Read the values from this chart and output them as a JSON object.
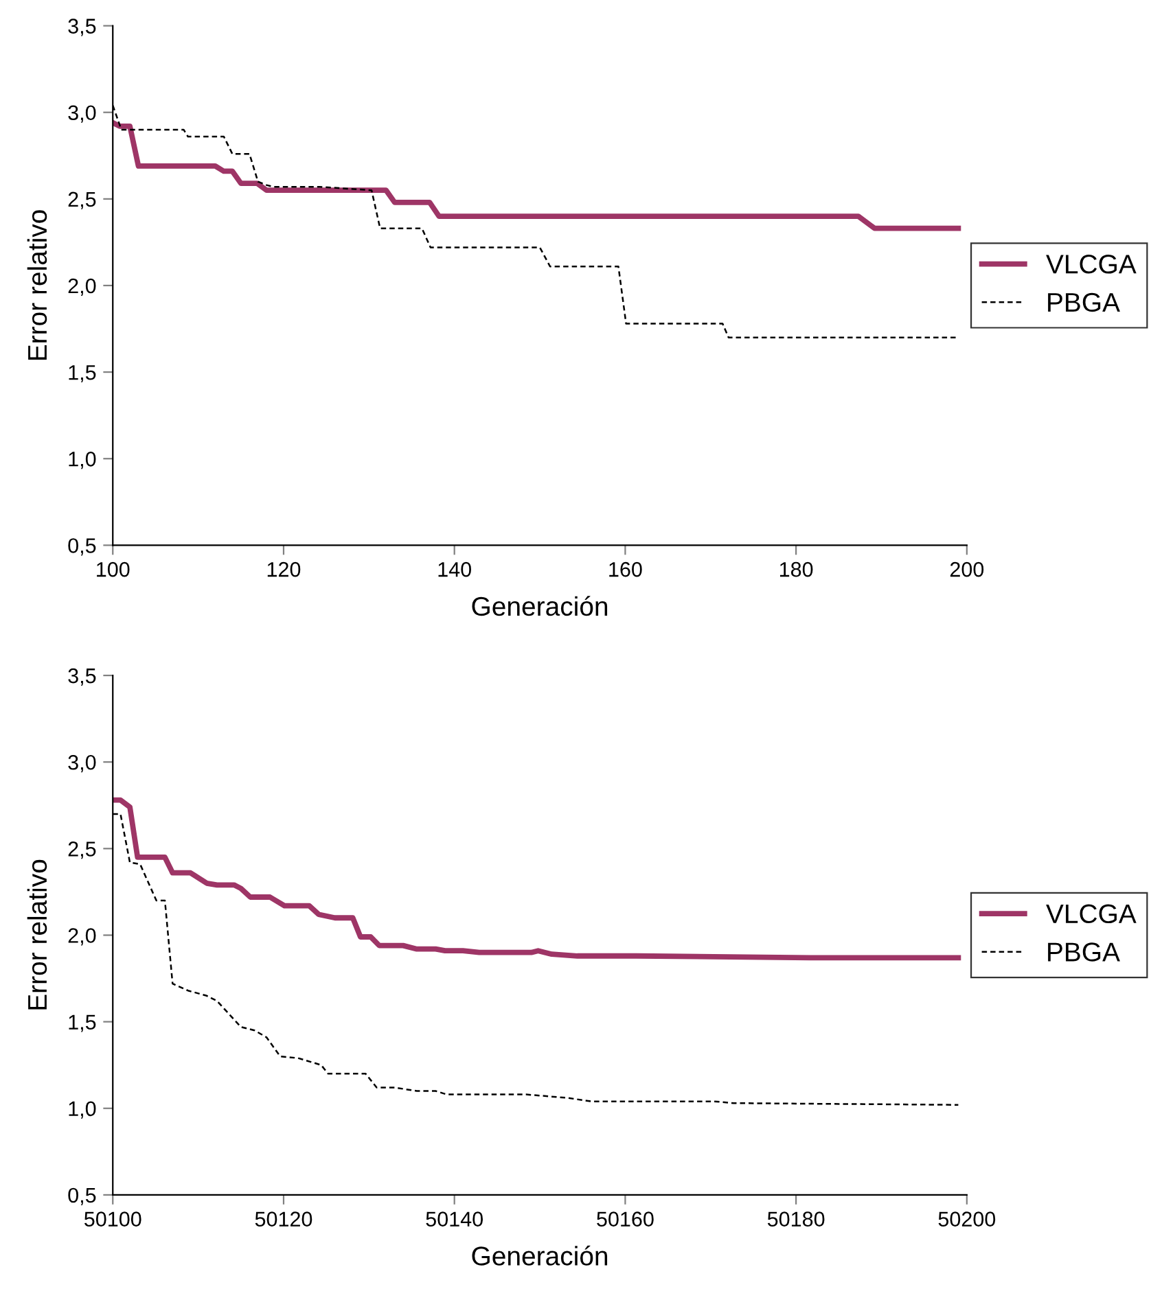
{
  "chart_data": [
    {
      "type": "line",
      "xlabel": "Generación",
      "ylabel": "Error relativo",
      "xlim": [
        100,
        200
      ],
      "xticks": [
        100,
        120,
        140,
        160,
        180,
        200
      ],
      "ylim": [
        0.5,
        3.5
      ],
      "yticks": [
        {
          "value": 0.5,
          "label": "0,5"
        },
        {
          "value": 1.0,
          "label": "1,0"
        },
        {
          "value": 1.5,
          "label": "1,5"
        },
        {
          "value": 2.0,
          "label": "2,0"
        },
        {
          "value": 2.5,
          "label": "2,5"
        },
        {
          "value": 3.0,
          "label": "3,0"
        },
        {
          "value": 3.5,
          "label": "3,5"
        }
      ],
      "grid": false,
      "legend": "right",
      "marker": "none",
      "series": [
        {
          "name": "VLCGA",
          "color": "#9e3566",
          "line_style": "solid",
          "x": [
            100,
            100.8,
            102,
            103,
            112,
            113,
            114,
            115,
            116.9,
            118,
            132,
            133,
            137.1,
            138.2,
            187.3,
            189.2,
            199
          ],
          "values": [
            2.94,
            2.92,
            2.92,
            2.69,
            2.69,
            2.66,
            2.66,
            2.59,
            2.59,
            2.55,
            2.55,
            2.48,
            2.48,
            2.4,
            2.4,
            2.33,
            2.33
          ]
        },
        {
          "name": "PBGA",
          "color": "#000000",
          "line_style": "dashed",
          "x": [
            100,
            101,
            108.3,
            108.8,
            113,
            114,
            116,
            117,
            118,
            118.8,
            124.2,
            130.3,
            131.3,
            136.2,
            137.2,
            150,
            151.2,
            159.2,
            160.1,
            171.4,
            172.1,
            199
          ],
          "values": [
            3.04,
            2.9,
            2.9,
            2.86,
            2.86,
            2.76,
            2.76,
            2.6,
            2.58,
            2.57,
            2.57,
            2.55,
            2.33,
            2.33,
            2.22,
            2.22,
            2.11,
            2.11,
            1.78,
            1.78,
            1.7,
            1.7
          ]
        }
      ]
    },
    {
      "type": "line",
      "xlabel": "Generación",
      "ylabel": "Error relativo",
      "xlim": [
        50100,
        50200
      ],
      "xticks": [
        50100,
        50120,
        50140,
        50160,
        50180,
        50200
      ],
      "ylim": [
        0.5,
        3.5
      ],
      "yticks": [
        {
          "value": 0.5,
          "label": "0,5"
        },
        {
          "value": 1.0,
          "label": "1,0"
        },
        {
          "value": 1.5,
          "label": "1,5"
        },
        {
          "value": 2.0,
          "label": "2,0"
        },
        {
          "value": 2.5,
          "label": "2,5"
        },
        {
          "value": 3.0,
          "label": "3,0"
        },
        {
          "value": 3.5,
          "label": "3,5"
        }
      ],
      "grid": false,
      "legend": "right",
      "marker": "none",
      "series": [
        {
          "name": "VLCGA",
          "color": "#9e3566",
          "line_style": "solid",
          "x": [
            50100,
            50100.9,
            50102,
            50102.9,
            50106.1,
            50107,
            50109.1,
            50111,
            50112.2,
            50114.2,
            50115,
            50116.1,
            50118.4,
            50120.1,
            50123,
            50124.1,
            50126,
            50128.1,
            50129,
            50130.2,
            50131.2,
            50134,
            50135.6,
            50137.8,
            50138.9,
            50141,
            50142.9,
            50149,
            50149.8,
            50151.4,
            50154.4,
            50161.3,
            50181.7,
            50199
          ],
          "values": [
            2.78,
            2.78,
            2.74,
            2.45,
            2.45,
            2.36,
            2.36,
            2.3,
            2.29,
            2.29,
            2.27,
            2.22,
            2.22,
            2.17,
            2.17,
            2.12,
            2.1,
            2.1,
            1.99,
            1.99,
            1.94,
            1.94,
            1.92,
            1.92,
            1.91,
            1.91,
            1.9,
            1.9,
            1.91,
            1.89,
            1.88,
            1.88,
            1.87,
            1.87
          ]
        },
        {
          "name": "PBGA",
          "color": "#000000",
          "line_style": "dashed",
          "x": [
            50100,
            50100.9,
            50102,
            50103.2,
            50105.1,
            50106.1,
            50107,
            50108.8,
            50111,
            50112.2,
            50115,
            50116.6,
            50118,
            50119.6,
            50121.7,
            50124.4,
            50125.2,
            50129.6,
            50130.9,
            50133,
            50135.6,
            50137.8,
            50139.1,
            50148.4,
            50153.3,
            50156,
            50170.4,
            50172.7,
            50199
          ],
          "values": [
            2.7,
            2.7,
            2.42,
            2.41,
            2.2,
            2.2,
            1.72,
            1.68,
            1.65,
            1.62,
            1.47,
            1.45,
            1.41,
            1.3,
            1.29,
            1.25,
            1.2,
            1.2,
            1.12,
            1.12,
            1.1,
            1.1,
            1.08,
            1.08,
            1.06,
            1.04,
            1.04,
            1.03,
            1.02
          ]
        }
      ]
    }
  ]
}
